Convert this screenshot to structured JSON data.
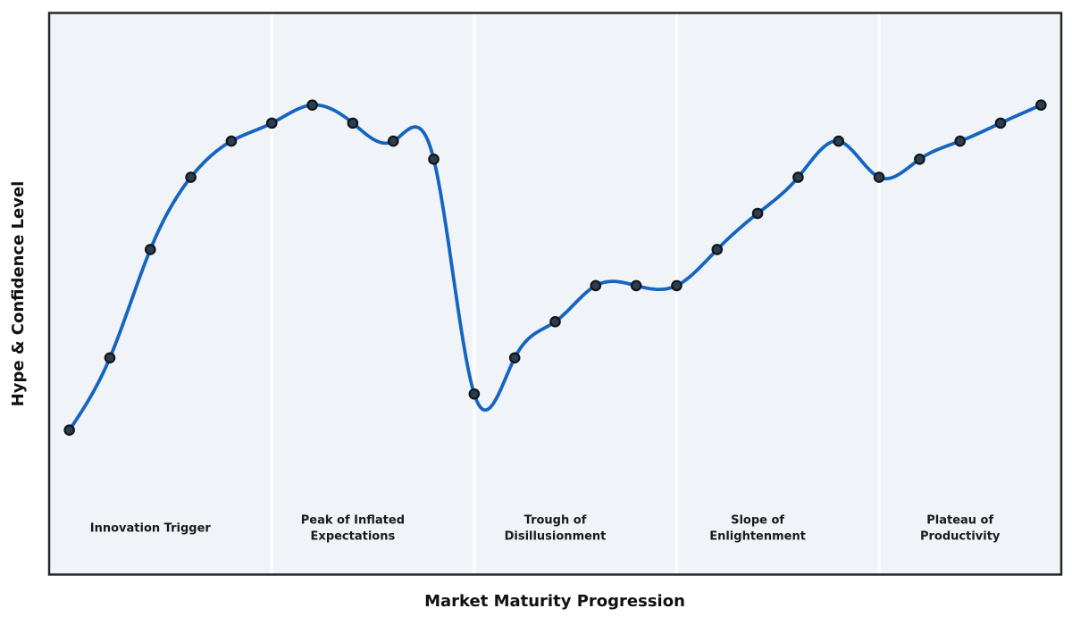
{
  "figure": {
    "xlabel": "Market Maturity Progression",
    "ylabel": "Hype & Confidence Level",
    "background_color": "#ffffff",
    "plot_background_color": "#f0f4f8",
    "spine_color": "#24292e",
    "divider_color": "#ffffff"
  },
  "chart_data": {
    "type": "line",
    "title": "",
    "xlabel": "Market Maturity Progression",
    "ylabel": "Hype & Confidence Level",
    "x": [
      2,
      6,
      10,
      14,
      18,
      22,
      26,
      30,
      34,
      38,
      42,
      46,
      50,
      54,
      58,
      62,
      66,
      70,
      74,
      78,
      82,
      86,
      90,
      94,
      98
    ],
    "y": [
      0,
      20,
      50,
      70,
      80,
      85,
      90,
      85,
      80,
      75,
      10,
      20,
      30,
      40,
      40,
      40,
      50,
      60,
      70,
      80,
      70,
      75,
      80,
      85,
      90
    ],
    "xlim": [
      0,
      100
    ],
    "ylim": [
      -40,
      115.5
    ],
    "grid": false,
    "legend": null,
    "smoothing": "natural-cubic-spline",
    "line_color": "#1565c0",
    "line_width": 3.8,
    "marker_fill": "#2c3e50",
    "marker_edge": "#10151a",
    "marker_radius": 5.2,
    "phase_boundaries_x": [
      22,
      42,
      62,
      82
    ],
    "phase_label_y": -27,
    "phases": [
      {
        "label": "Innovation Trigger",
        "label_x": 10
      },
      {
        "label": "Peak of Inflated\nExpectations",
        "label_x": 30
      },
      {
        "label": "Trough of\nDisillusionment",
        "label_x": 50
      },
      {
        "label": "Slope of\nEnlightenment",
        "label_x": 70
      },
      {
        "label": "Plateau of\nProductivity",
        "label_x": 90
      }
    ]
  }
}
